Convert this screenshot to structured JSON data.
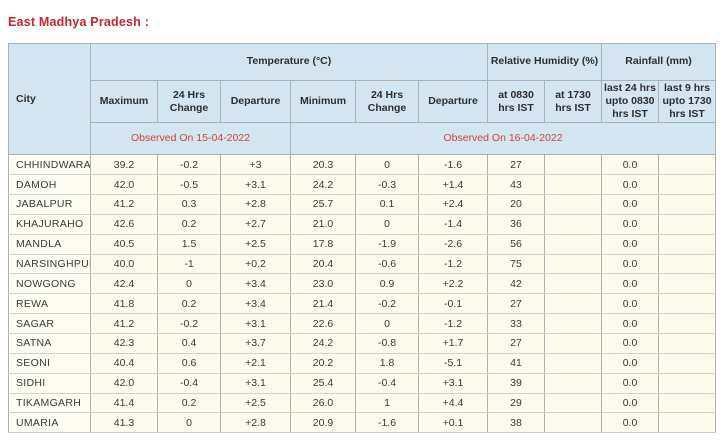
{
  "page": {
    "title": "East Madhya Pradesh :"
  },
  "colors": {
    "title-red": "#c4262b",
    "observed-red": "#cf4634",
    "header-blue": "#d2e5f1",
    "cell-cream": "#fbfaeb",
    "city-cream": "#fdfdf3"
  },
  "table": {
    "city_header": "City",
    "groups": {
      "temperature": "Temperature (°C)",
      "humidity": "Relative Humidity (%)",
      "rainfall": "Rainfall (mm)"
    },
    "sub_headers": [
      "Maximum",
      "24 Hrs Change",
      "Departure",
      "Minimum",
      "24 Hrs Change",
      "Departure",
      "at 0830 hrs IST",
      "at 1730 hrs IST",
      "last 24 hrs upto 0830 hrs IST",
      "last 9 hrs upto 1730 hrs IST"
    ],
    "observed_left": "Observed On 15-04-2022",
    "observed_right": "Observed On 16-04-2022",
    "rows": [
      {
        "city": "CHHINDWARA",
        "values": [
          "39.2",
          "-0.2",
          "+3",
          "20.3",
          "0",
          "-1.6",
          "27",
          "",
          "0.0",
          ""
        ]
      },
      {
        "city": "DAMOH",
        "values": [
          "42.0",
          "-0.5",
          "+3.1",
          "24.2",
          "-0.3",
          "+1.4",
          "43",
          "",
          "0.0",
          ""
        ]
      },
      {
        "city": "JABALPUR",
        "values": [
          "41.2",
          "0.3",
          "+2.8",
          "25.7",
          "0.1",
          "+2.4",
          "20",
          "",
          "0.0",
          ""
        ]
      },
      {
        "city": "KHAJURAHO",
        "values": [
          "42.6",
          "0.2",
          "+2.7",
          "21.0",
          "0",
          "-1.4",
          "36",
          "",
          "0.0",
          ""
        ]
      },
      {
        "city": "MANDLA",
        "values": [
          "40.5",
          "1.5",
          "+2.5",
          "17.8",
          "-1.9",
          "-2.6",
          "56",
          "",
          "0.0",
          ""
        ]
      },
      {
        "city": "NARSINGHPUR",
        "values": [
          "40.0",
          "-1",
          "+0.2",
          "20.4",
          "-0.6",
          "-1.2",
          "75",
          "",
          "0.0",
          ""
        ]
      },
      {
        "city": "NOWGONG",
        "values": [
          "42.4",
          "0",
          "+3.4",
          "23.0",
          "0.9",
          "+2.2",
          "42",
          "",
          "0.0",
          ""
        ]
      },
      {
        "city": "REWA",
        "values": [
          "41.8",
          "0.2",
          "+3.4",
          "21.4",
          "-0.2",
          "-0.1",
          "27",
          "",
          "0.0",
          ""
        ]
      },
      {
        "city": "SAGAR",
        "values": [
          "41.2",
          "-0.2",
          "+3.1",
          "22.6",
          "0",
          "-1.2",
          "33",
          "",
          "0.0",
          ""
        ]
      },
      {
        "city": "SATNA",
        "values": [
          "42.3",
          "0.4",
          "+3.7",
          "24.2",
          "-0.8",
          "+1.7",
          "27",
          "",
          "0.0",
          ""
        ]
      },
      {
        "city": "SEONI",
        "values": [
          "40.4",
          "0.6",
          "+2.1",
          "20.2",
          "1.8",
          "-5.1",
          "41",
          "",
          "0.0",
          ""
        ]
      },
      {
        "city": "SIDHI",
        "values": [
          "42.0",
          "-0.4",
          "+3.1",
          "25.4",
          "-0.4",
          "+3.1",
          "39",
          "",
          "0.0",
          ""
        ]
      },
      {
        "city": "TIKAMGARH",
        "values": [
          "41.4",
          "0.2",
          "+2.5",
          "26.0",
          "1",
          "+4.4",
          "29",
          "",
          "0.0",
          ""
        ]
      },
      {
        "city": "UMARIA",
        "values": [
          "41.3",
          "0",
          "+2.8",
          "20.9",
          "-1.6",
          "+0.1",
          "38",
          "",
          "0.0",
          ""
        ]
      }
    ]
  }
}
